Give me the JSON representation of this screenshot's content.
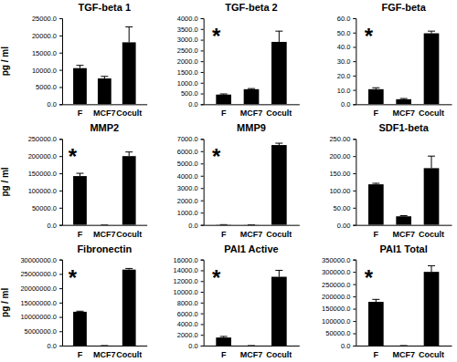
{
  "chart_data": [
    {
      "type": "bar",
      "title": "TGF-beta 1",
      "y_label": "pg / ml",
      "categories": [
        "F",
        "MCF7",
        "Cocult"
      ],
      "values": [
        10500,
        7500,
        18000
      ],
      "errors": [
        800,
        600,
        4500
      ],
      "color": "#000000",
      "ylim": [
        0,
        25000
      ],
      "yticks": [
        {
          "value": 0,
          "label": "0.0"
        },
        {
          "value": 5000,
          "label": "5000.0"
        },
        {
          "value": 10000,
          "label": "10000.0"
        },
        {
          "value": 15000,
          "label": "15000.0"
        },
        {
          "value": 20000,
          "label": "20000.0"
        },
        {
          "value": 25000,
          "label": "25000.0"
        }
      ]
    },
    {
      "type": "bar",
      "title": "TGF-beta 2",
      "annotations": [
        "*"
      ],
      "categories": [
        "F",
        "MCF7",
        "Cocult"
      ],
      "values": [
        450,
        700,
        2900
      ],
      "errors": [
        30,
        30,
        500
      ],
      "color": "#000000",
      "ylim": [
        0,
        4000
      ],
      "yticks": [
        {
          "value": 0,
          "label": "0.0"
        },
        {
          "value": 500,
          "label": "500.0"
        },
        {
          "value": 1000,
          "label": "1000.0"
        },
        {
          "value": 1500,
          "label": "1500.0"
        },
        {
          "value": 2000,
          "label": "2000.0"
        },
        {
          "value": 2500,
          "label": "2500.0"
        },
        {
          "value": 3000,
          "label": "3000.0"
        },
        {
          "value": 3500,
          "label": "3500.0"
        },
        {
          "value": 4000,
          "label": "4000.0"
        }
      ]
    },
    {
      "type": "bar",
      "title": "FGF-beta",
      "annotations": [
        "*"
      ],
      "categories": [
        "F",
        "MCF7",
        "Cocult"
      ],
      "values": [
        10.5,
        3.5,
        49.5
      ],
      "errors": [
        1,
        0.5,
        1.5
      ],
      "color": "#000000",
      "ylim": [
        0,
        60
      ],
      "yticks": [
        {
          "value": 0,
          "label": "0.0"
        },
        {
          "value": 10,
          "label": "10.0"
        },
        {
          "value": 20,
          "label": "20.0"
        },
        {
          "value": 30,
          "label": "30.0"
        },
        {
          "value": 40,
          "label": "40.0"
        },
        {
          "value": 50,
          "label": "50.0"
        },
        {
          "value": 60,
          "label": "60.0"
        }
      ]
    },
    {
      "type": "bar",
      "title": "MMP2",
      "y_label": "pg / ml",
      "annotations": [
        "*"
      ],
      "categories": [
        "F",
        "MCF7",
        "Cocult"
      ],
      "values": [
        142000,
        0,
        200000
      ],
      "errors": [
        8000,
        0,
        12000
      ],
      "color": "#000000",
      "ylim": [
        0,
        250000
      ],
      "yticks": [
        {
          "value": 0,
          "label": "0.0"
        },
        {
          "value": 50000,
          "label": "50000.0"
        },
        {
          "value": 100000,
          "label": "100000.0"
        },
        {
          "value": 150000,
          "label": "150000.0"
        },
        {
          "value": 200000,
          "label": "200000.0"
        },
        {
          "value": 250000,
          "label": "250000.0"
        }
      ]
    },
    {
      "type": "bar",
      "title": "MMP9",
      "annotations": [
        "*"
      ],
      "categories": [
        "F",
        "MCF7",
        "Cocult"
      ],
      "values": [
        20,
        10,
        6500
      ],
      "errors": [
        5,
        3,
        150
      ],
      "color": "#000000",
      "ylim": [
        0,
        7000
      ],
      "yticks": [
        {
          "value": 0,
          "label": "0.0"
        },
        {
          "value": 1000,
          "label": "1000.0"
        },
        {
          "value": 2000,
          "label": "2000.0"
        },
        {
          "value": 3000,
          "label": "3000.0"
        },
        {
          "value": 4000,
          "label": "4000.0"
        },
        {
          "value": 5000,
          "label": "5000.0"
        },
        {
          "value": 6000,
          "label": "6000.0"
        },
        {
          "value": 7000,
          "label": "7000.0"
        }
      ]
    },
    {
      "type": "bar",
      "title": "SDF1-beta",
      "categories": [
        "F",
        "MCF7",
        "Cocult"
      ],
      "values": [
        118,
        25,
        165
      ],
      "errors": [
        3,
        2,
        35
      ],
      "color": "#000000",
      "ylim": [
        0,
        250
      ],
      "yticks": [
        {
          "value": 0,
          "label": "0.00"
        },
        {
          "value": 50,
          "label": "50.00"
        },
        {
          "value": 100,
          "label": "100.00"
        },
        {
          "value": 150,
          "label": "150.00"
        },
        {
          "value": 200,
          "label": "200.00"
        },
        {
          "value": 250,
          "label": "250.00"
        }
      ]
    },
    {
      "type": "bar",
      "title": "Fibronectin",
      "y_label": "pg / ml",
      "annotations": [
        "*"
      ],
      "categories": [
        "F",
        "MCF7",
        "Cocult"
      ],
      "values": [
        11800000,
        0,
        26500000
      ],
      "errors": [
        200000,
        0,
        400000
      ],
      "color": "#000000",
      "ylim": [
        0,
        30000000
      ],
      "yticks": [
        {
          "value": 0,
          "label": "0.0"
        },
        {
          "value": 5000000,
          "label": "5000000.0"
        },
        {
          "value": 10000000,
          "label": "10000000.0"
        },
        {
          "value": 15000000,
          "label": "15000000.0"
        },
        {
          "value": 20000000,
          "label": "20000000.0"
        },
        {
          "value": 25000000,
          "label": "25000000.0"
        },
        {
          "value": 30000000,
          "label": "30000000.0"
        }
      ]
    },
    {
      "type": "bar",
      "title": "PAI1 Active",
      "annotations": [
        "*"
      ],
      "categories": [
        "F",
        "MCF7",
        "Cocult"
      ],
      "values": [
        1500,
        0,
        12800
      ],
      "errors": [
        200,
        0,
        1200
      ],
      "color": "#000000",
      "ylim": [
        0,
        16000
      ],
      "yticks": [
        {
          "value": 0,
          "label": "0.0"
        },
        {
          "value": 2000,
          "label": "2000.0"
        },
        {
          "value": 4000,
          "label": "4000.0"
        },
        {
          "value": 6000,
          "label": "6000.0"
        },
        {
          "value": 8000,
          "label": "8000.0"
        },
        {
          "value": 10000,
          "label": "10000.0"
        },
        {
          "value": 12000,
          "label": "12000.0"
        },
        {
          "value": 14000,
          "label": "14000.0"
        },
        {
          "value": 16000,
          "label": "16000.0"
        }
      ]
    },
    {
      "type": "bar",
      "title": "PAI1 Total",
      "annotations": [
        "*"
      ],
      "categories": [
        "F",
        "MCF7",
        "Cocult"
      ],
      "values": [
        178000,
        0,
        300000
      ],
      "errors": [
        10000,
        0,
        25000
      ],
      "color": "#000000",
      "ylim": [
        0,
        350000
      ],
      "yticks": [
        {
          "value": 0,
          "label": "0.0"
        },
        {
          "value": 50000,
          "label": "50000.0"
        },
        {
          "value": 100000,
          "label": "100000.0"
        },
        {
          "value": 150000,
          "label": "150000.0"
        },
        {
          "value": 200000,
          "label": "200000.0"
        },
        {
          "value": 250000,
          "label": "250000.0"
        },
        {
          "value": 300000,
          "label": "300000.0"
        },
        {
          "value": 350000,
          "label": "350000.0"
        }
      ]
    }
  ]
}
